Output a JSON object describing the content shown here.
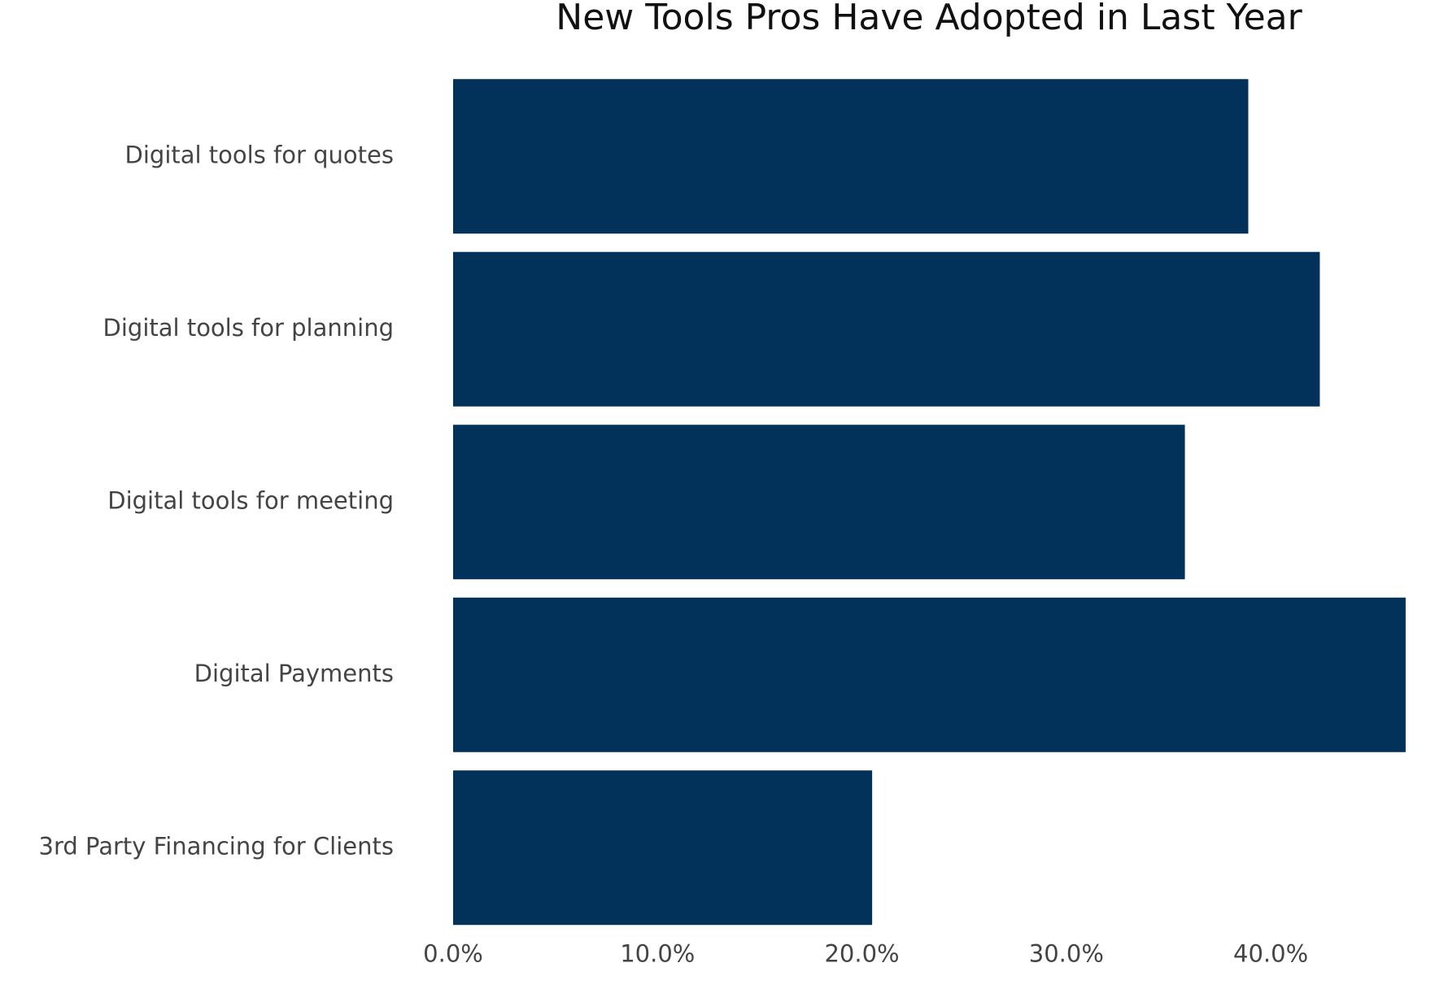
{
  "chart_data": {
    "type": "bar",
    "orientation": "horizontal",
    "title": "New Tools Pros Have Adopted in Last Year",
    "categories": [
      "Digital tools for quotes",
      "Digital tools for planning",
      "Digital tools for meeting",
      "Digital Payments",
      "3rd Party Financing for Clients"
    ],
    "values": [
      38.9,
      42.4,
      35.8,
      46.6,
      20.5
    ],
    "color": "#02325a",
    "xlim": [
      0,
      47
    ],
    "xticks": [
      {
        "value": 0,
        "label": "0.0%"
      },
      {
        "value": 10,
        "label": "10.0%"
      },
      {
        "value": 20,
        "label": "20.0%"
      },
      {
        "value": 30,
        "label": "30.0%"
      },
      {
        "value": 40,
        "label": "40.0%"
      }
    ],
    "grid": false
  }
}
